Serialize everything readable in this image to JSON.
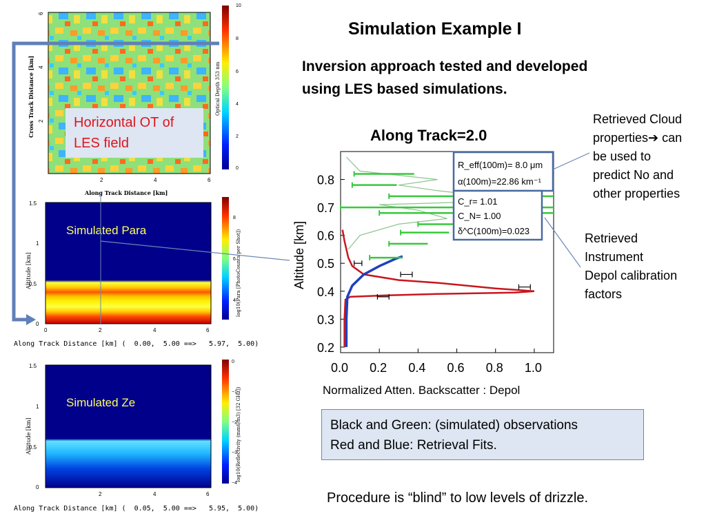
{
  "slide": {
    "title": "Simulation Example I",
    "subtitle_line1": "Inversion approach tested and developed",
    "subtitle_line2": "using LES based simulations.",
    "note_cloud": [
      "Retrieved Cloud",
      "properties➔ can",
      "be used to",
      "predict No and",
      "other properties"
    ],
    "note_depol": [
      "Retrieved",
      "Instrument",
      "Depol calibration",
      "factors"
    ],
    "legend_line1": "Black and Green: (simulated) observations",
    "legend_line2": "Red and Blue: Retrieval Fits.",
    "footer": "Procedure is “blind” to low levels of drizzle."
  },
  "panels": {
    "ot": {
      "ylabel": "Cross Track Distance [km]",
      "xlabel": "Along Track Distance [km]",
      "xticks": [
        "2",
        "4",
        "6"
      ],
      "yticks": [
        "2",
        "4",
        "6"
      ],
      "colorbar_label": "Optical Depth 353 nm",
      "colorbar_ticks": [
        "0",
        "2",
        "4",
        "6",
        "8",
        "10"
      ],
      "callout": [
        "Horizontal OT of",
        "LES field"
      ]
    },
    "para": {
      "ylabel": "Altitude [km]",
      "xticks": [
        "0",
        "2",
        "4",
        "6"
      ],
      "yticks": [
        "0",
        "0.5",
        "1",
        "1.5"
      ],
      "colorbar_label": "log10(Para [PhotoCounts per Shot])",
      "colorbar_ticks": [
        "4",
        "6",
        "8"
      ],
      "label": "Simulated Para",
      "caption": "Along Track Distance [km] (  0.00,  5.00 ==>   5.97,  5.00)"
    },
    "ze": {
      "ylabel": "Altitude [km]",
      "xticks": [
        "2",
        "4",
        "6"
      ],
      "yticks": [
        "0",
        "0.5",
        "1",
        "1.5"
      ],
      "colorbar_label": "log10(Reflectivity (mm6/m3) [32 GHz])",
      "colorbar_ticks": [
        "0",
        "−1",
        "−2",
        "−3",
        "−4"
      ],
      "label": "Simulated Ze",
      "caption": "Along Track Distance [km] (  0.05,  5.00 ==>   5.95,  5.00)"
    }
  },
  "chart_data": {
    "type": "line",
    "title": "Along Track=2.0",
    "xlabel": "Normalized Atten. Backscatter : Depol",
    "ylabel": "Altitude [km]",
    "xlim": [
      0.0,
      1.1
    ],
    "ylim": [
      0.18,
      0.9
    ],
    "xticks": [
      "0.0",
      "0.2",
      "0.4",
      "0.6",
      "0.8",
      "1.0"
    ],
    "yticks": [
      "0.2",
      "0.3",
      "0.4",
      "0.5",
      "0.6",
      "0.7",
      "0.8"
    ],
    "annotations": [
      "R_eff(100m)=  8.0 μm",
      "α(100m)=22.86 km⁻¹",
      "C_r= 1.01",
      "C_N= 1.00",
      "δ^C(100m)=0.023"
    ],
    "series": [
      {
        "values": [
          [
            0.02,
            0.2
          ],
          [
            0.02,
            0.3
          ],
          [
            0.025,
            0.37
          ],
          [
            0.05,
            0.38
          ],
          [
            0.23,
            0.385
          ],
          [
            0.5,
            0.39
          ],
          [
            0.9,
            0.395
          ],
          [
            1.0,
            0.4
          ],
          [
            0.8,
            0.41
          ],
          [
            0.5,
            0.43
          ],
          [
            0.3,
            0.44
          ],
          [
            0.12,
            0.46
          ],
          [
            0.06,
            0.49
          ],
          [
            0.04,
            0.52
          ],
          [
            0.03,
            0.55
          ],
          [
            0.02,
            0.58
          ],
          [
            0.01,
            0.62
          ]
        ]
      },
      {
        "values": [
          [
            0.03,
            0.2
          ],
          [
            0.03,
            0.3
          ],
          [
            0.035,
            0.38
          ],
          [
            0.06,
            0.42
          ],
          [
            0.12,
            0.46
          ],
          [
            0.2,
            0.49
          ],
          [
            0.28,
            0.515
          ],
          [
            0.32,
            0.525
          ]
        ]
      },
      {
        "values": [
          [
            0.04,
            0.55
          ],
          [
            0.1,
            0.6
          ],
          [
            0.3,
            0.64
          ],
          [
            0.55,
            0.66
          ],
          [
            0.4,
            0.69
          ],
          [
            0.2,
            0.71
          ],
          [
            0.7,
            0.72
          ],
          [
            0.9,
            0.73
          ],
          [
            0.5,
            0.76
          ],
          [
            0.3,
            0.78
          ],
          [
            0.5,
            0.8
          ],
          [
            0.1,
            0.83
          ],
          [
            0.03,
            0.88
          ]
        ]
      }
    ],
    "green_errorbars": [
      {
        "y": 0.52,
        "x": 0.23,
        "lo": 0.15,
        "hi": 0.32
      },
      {
        "y": 0.57,
        "x": 0.35,
        "lo": 0.25,
        "hi": 0.45
      },
      {
        "y": 0.61,
        "x": 0.45,
        "lo": 0.31,
        "hi": 0.56
      },
      {
        "y": 0.64,
        "x": 0.55,
        "lo": 0.4,
        "hi": 0.7
      },
      {
        "y": 0.68,
        "x": 0.55,
        "lo": 0.2,
        "hi": 1.1
      },
      {
        "y": 0.7,
        "x": 0.55,
        "lo": 0.0,
        "hi": 1.1
      },
      {
        "y": 0.74,
        "x": 0.55,
        "lo": 0.25,
        "hi": 1.1
      },
      {
        "y": 0.78,
        "x": 0.18,
        "lo": 0.06,
        "hi": 0.29
      },
      {
        "y": 0.82,
        "x": 0.2,
        "lo": 0.07,
        "hi": 0.38
      }
    ],
    "black_errorbars": [
      {
        "y": 0.38,
        "x": 0.22,
        "lo": 0.19,
        "hi": 0.25
      },
      {
        "y": 0.415,
        "x": 0.95,
        "lo": 0.92,
        "hi": 0.98
      },
      {
        "y": 0.46,
        "x": 0.34,
        "lo": 0.31,
        "hi": 0.37
      },
      {
        "y": 0.5,
        "x": 0.09,
        "lo": 0.07,
        "hi": 0.11
      }
    ],
    "colors": {
      "red": "#c8161d",
      "blue": "#1f3fbf",
      "green": "#37c83c",
      "gray": "#8cc48c"
    }
  }
}
